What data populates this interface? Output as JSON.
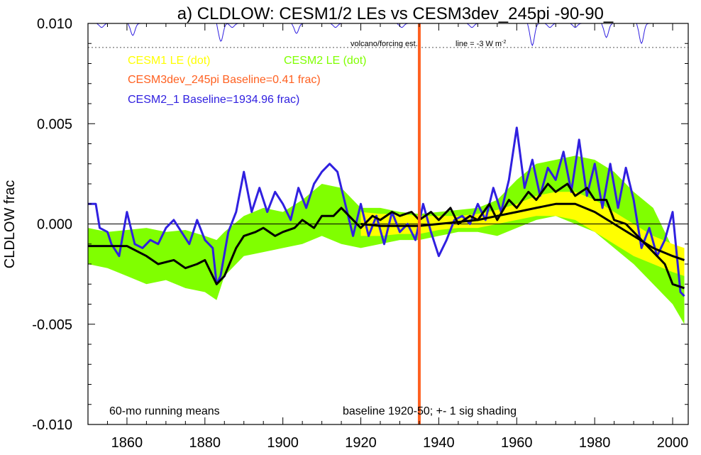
{
  "chart_data": {
    "type": "line",
    "title": "a) CLDLOW: CESM1/2 LEs vs CESM3dev_245pi -90-90_",
    "ylabel": "CLDLOW frac",
    "xlabel": "",
    "xlim": [
      1850,
      2004
    ],
    "ylim": [
      -0.01,
      0.01
    ],
    "y_ticks": [
      "0.010",
      "0.005",
      "0.000",
      "-0.005",
      "-0.010"
    ],
    "y_tick_values": [
      0.01,
      0.005,
      0.0,
      -0.005,
      -0.01
    ],
    "x_ticks": [
      "1860",
      "1880",
      "1900",
      "1920",
      "1940",
      "1960",
      "1980",
      "2000"
    ],
    "x_tick_values": [
      1860,
      1880,
      1900,
      1920,
      1940,
      1960,
      1980,
      2000
    ],
    "grid": false,
    "zero_line": true,
    "legend": [
      {
        "label": "CESM1 LE (dot)",
        "color": "#ffff00"
      },
      {
        "label": "CESM2 LE (dot)",
        "color": "#80ff00"
      },
      {
        "label": "CESM3dev_245pi Baseline=0.41 frac)",
        "color": "#ff6020"
      },
      {
        "label": "CESM2_1 Baseline=1934.96 frac)",
        "color": "#3020e0"
      }
    ],
    "annotations": {
      "volcano": "volcano/forcing est.",
      "line_note": "line = -3 W m",
      "line_note_sup": "-2",
      "bottom_left": "60-mo running means",
      "bottom_right": "baseline 1920-50; +- 1 sig shading"
    },
    "cesm3_vertical_line_year": 1935,
    "series": [
      {
        "name": "CESM2 LE (dot)",
        "kind": "band",
        "color": "#80ff00",
        "x": [
          1850,
          1855,
          1860,
          1865,
          1870,
          1875,
          1880,
          1883,
          1885,
          1890,
          1895,
          1900,
          1905,
          1910,
          1915,
          1920,
          1925,
          1930,
          1935,
          1940,
          1945,
          1950,
          1955,
          1960,
          1965,
          1970,
          1975,
          1980,
          1985,
          1990,
          1995,
          2000,
          2003
        ],
        "upper": [
          -0.0002,
          -0.0004,
          -0.0003,
          -0.0002,
          -0.0004,
          -0.0003,
          -0.0006,
          -0.0008,
          -0.0004,
          0.0004,
          0.0008,
          0.0006,
          0.0012,
          0.002,
          0.0018,
          0.0008,
          0.0008,
          0.0006,
          0.0005,
          0.0006,
          0.0007,
          0.0008,
          0.0012,
          0.0022,
          0.003,
          0.0032,
          0.0034,
          0.0032,
          0.0026,
          0.0016,
          0.0008,
          -0.0012,
          -0.0022
        ],
        "lower": [
          -0.002,
          -0.0022,
          -0.0026,
          -0.003,
          -0.0028,
          -0.0032,
          -0.0034,
          -0.0038,
          -0.0026,
          -0.0016,
          -0.0014,
          -0.0012,
          -0.001,
          -0.0006,
          -0.001,
          -0.0012,
          -0.001,
          -0.0008,
          -0.0008,
          -0.0006,
          -0.0004,
          -0.0004,
          -0.0006,
          -0.0002,
          0.0002,
          0.0004,
          0.0,
          -0.0004,
          -0.0012,
          -0.002,
          -0.003,
          -0.004,
          -0.005
        ]
      },
      {
        "name": "CESM1 LE (dot)",
        "kind": "band",
        "color": "#ffff00",
        "x": [
          1920,
          1925,
          1930,
          1935,
          1940,
          1945,
          1950,
          1955,
          1960,
          1965,
          1970,
          1975,
          1980,
          1985,
          1990,
          1995,
          2000,
          2003
        ],
        "upper": [
          0.0006,
          0.0005,
          0.0005,
          0.0004,
          0.0004,
          0.0004,
          0.0005,
          0.0007,
          0.001,
          0.0014,
          0.0016,
          0.0016,
          0.0012,
          0.0006,
          0.0,
          -0.0006,
          -0.001,
          -0.0012
        ],
        "lower": [
          -0.0006,
          -0.0006,
          -0.0005,
          -0.0005,
          -0.0003,
          -0.0002,
          -0.0002,
          0.0,
          0.0002,
          0.0004,
          0.0004,
          0.0002,
          -0.0004,
          -0.001,
          -0.0016,
          -0.002,
          -0.0024,
          -0.0026
        ]
      },
      {
        "name": "CESM2_1 Baseline=1934.96 frac)",
        "kind": "line",
        "color": "#3020e0",
        "x": [
          1850,
          1852,
          1853,
          1855,
          1856,
          1858,
          1860,
          1862,
          1864,
          1866,
          1868,
          1870,
          1872,
          1874,
          1876,
          1878,
          1880,
          1882,
          1883,
          1884,
          1886,
          1888,
          1890,
          1892,
          1894,
          1896,
          1898,
          1900,
          1902,
          1904,
          1906,
          1908,
          1910,
          1912,
          1914,
          1916,
          1918,
          1920,
          1922,
          1924,
          1926,
          1928,
          1930,
          1932,
          1934,
          1936,
          1938,
          1940,
          1942,
          1944,
          1946,
          1948,
          1950,
          1952,
          1954,
          1956,
          1958,
          1960,
          1962,
          1964,
          1966,
          1968,
          1970,
          1972,
          1974,
          1976,
          1978,
          1980,
          1982,
          1984,
          1986,
          1988,
          1990,
          1992,
          1994,
          1996,
          1998,
          2000,
          2002,
          2003
        ],
        "y": [
          0.001,
          0.001,
          -0.0002,
          -0.0004,
          -0.001,
          -0.0016,
          0.0006,
          -0.001,
          -0.0012,
          -0.0008,
          -0.001,
          -0.0002,
          0.0002,
          -0.0004,
          -0.001,
          0.0002,
          -0.0008,
          -0.0012,
          -0.003,
          -0.0026,
          -0.0004,
          0.0006,
          0.0026,
          0.0006,
          0.0018,
          0.0006,
          0.0016,
          0.001,
          0.0002,
          0.0018,
          0.0008,
          0.002,
          0.0026,
          0.003,
          0.0026,
          0.001,
          -0.0006,
          0.001,
          -0.0006,
          0.0004,
          -0.001,
          0.0006,
          -0.0004,
          0.0,
          -0.0008,
          0.001,
          -0.0004,
          -0.0016,
          -0.0008,
          0.0002,
          0.0004,
          0.0,
          0.001,
          0.0002,
          0.0018,
          0.0006,
          0.0022,
          0.0048,
          0.0018,
          0.0032,
          0.0014,
          0.0028,
          0.0022,
          0.0036,
          0.0016,
          0.0042,
          0.0014,
          0.003,
          0.0008,
          0.003,
          0.0008,
          0.0028,
          0.0012,
          -0.0012,
          -0.0002,
          -0.0016,
          -0.0008,
          0.0006,
          -0.0034,
          -0.0036
        ]
      },
      {
        "name": "CESM2 LE mean",
        "kind": "line",
        "color": "#000000",
        "x": [
          1850,
          1855,
          1860,
          1865,
          1868,
          1872,
          1875,
          1878,
          1880,
          1883,
          1885,
          1888,
          1890,
          1893,
          1895,
          1898,
          1900,
          1903,
          1905,
          1908,
          1910,
          1913,
          1915,
          1918,
          1920,
          1923,
          1925,
          1928,
          1930,
          1933,
          1935,
          1938,
          1940,
          1943,
          1945,
          1948,
          1950,
          1953,
          1955,
          1958,
          1960,
          1963,
          1965,
          1968,
          1970,
          1973,
          1975,
          1978,
          1980,
          1983,
          1985,
          1988,
          1990,
          1993,
          1995,
          1998,
          2000,
          2003
        ],
        "y": [
          -0.0011,
          -0.0011,
          -0.0011,
          -0.0016,
          -0.002,
          -0.0018,
          -0.0022,
          -0.002,
          -0.0018,
          -0.003,
          -0.0026,
          -0.0012,
          -0.0006,
          -0.0004,
          -0.0002,
          -0.0006,
          -0.0004,
          -0.0002,
          0.0002,
          -0.0002,
          0.0004,
          0.0004,
          0.0008,
          0.0002,
          -0.0002,
          0.0004,
          0.0002,
          0.0006,
          0.0004,
          0.0006,
          0.0002,
          0.0006,
          0.0002,
          0.0008,
          0.0,
          0.0004,
          0.0002,
          0.001,
          0.0002,
          0.0012,
          0.0008,
          0.0016,
          0.0012,
          0.002,
          0.0016,
          0.002,
          0.0014,
          0.0018,
          0.0012,
          0.0012,
          0.0002,
          0.0,
          -0.0004,
          -0.001,
          -0.0014,
          -0.002,
          -0.003,
          -0.0032
        ]
      },
      {
        "name": "CESM1 LE mean",
        "kind": "line",
        "color": "#000000",
        "x": [
          1920,
          1925,
          1930,
          1935,
          1940,
          1945,
          1950,
          1955,
          1960,
          1965,
          1970,
          1975,
          1980,
          1985,
          1990,
          1995,
          2000,
          2003
        ],
        "y": [
          0.0,
          -0.0001,
          -0.0001,
          -0.0001,
          0.0,
          0.0001,
          0.0002,
          0.0004,
          0.0006,
          0.0008,
          0.001,
          0.001,
          0.0006,
          0.0,
          -0.0006,
          -0.0012,
          -0.0016,
          -0.0018
        ]
      }
    ],
    "forcing_dips": {
      "name": "volcano/forcing est.",
      "color": "#3020e0",
      "baseline": 0.01,
      "threshold_value": 0.0088,
      "events": [
        {
          "year": 1853,
          "depth": 0.0002
        },
        {
          "year": 1861,
          "depth": 0.0006
        },
        {
          "year": 1883.6,
          "depth": 0.0009
        },
        {
          "year": 1886.5,
          "depth": 0.0002
        },
        {
          "year": 1903,
          "depth": 0.0005
        },
        {
          "year": 1913,
          "depth": 0.0002
        },
        {
          "year": 1930,
          "depth": 0.0002
        },
        {
          "year": 1948,
          "depth": 0.0002
        },
        {
          "year": 1963.5,
          "depth": 0.0011
        },
        {
          "year": 1968,
          "depth": 0.0002
        },
        {
          "year": 1974.5,
          "depth": 0.0002
        },
        {
          "year": 1982.5,
          "depth": 0.0007
        },
        {
          "year": 1991.5,
          "depth": 0.001
        }
      ]
    }
  }
}
